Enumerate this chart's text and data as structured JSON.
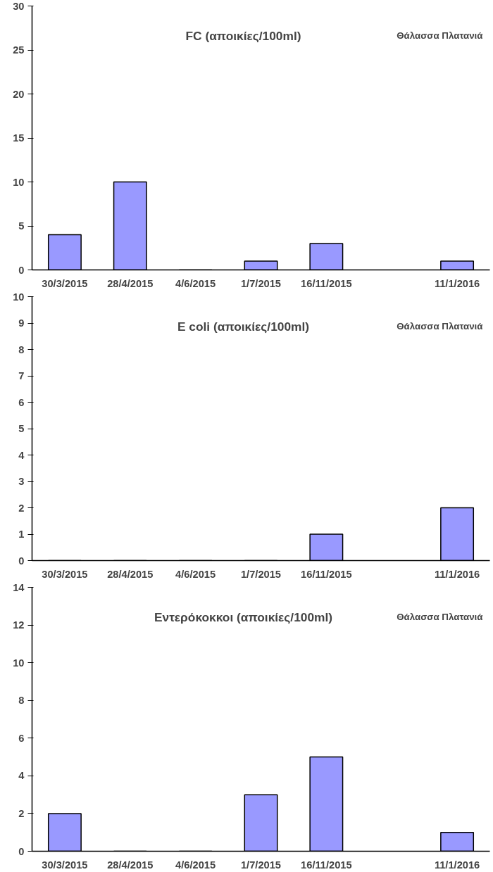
{
  "chart_data": [
    {
      "type": "bar",
      "title": "FC (αποικίες/100ml)",
      "annotations": [
        "Θάλασσα Πλατανιά"
      ],
      "categories": [
        "30/3/2015",
        "28/4/2015",
        "4/6/2015",
        "1/7/2015",
        "16/11/2015",
        null,
        "11/1/2016"
      ],
      "values": [
        4,
        10,
        0,
        1,
        3,
        null,
        1
      ],
      "color": "#9999ff",
      "ylim": [
        0,
        30
      ],
      "yticks": [
        0,
        5,
        10,
        15,
        20,
        25,
        30
      ],
      "grid": false
    },
    {
      "type": "bar",
      "title": "E coli (αποικίες/100ml)",
      "annotations": [
        "Θάλασσα Πλατανιά"
      ],
      "categories": [
        "30/3/2015",
        "28/4/2015",
        "4/6/2015",
        "1/7/2015",
        "16/11/2015",
        null,
        "11/1/2016"
      ],
      "values": [
        0,
        0,
        0,
        0,
        1,
        null,
        2
      ],
      "color": "#9999ff",
      "ylim": [
        0,
        10
      ],
      "yticks": [
        0,
        1,
        2,
        3,
        4,
        5,
        6,
        7,
        8,
        9,
        10
      ],
      "grid": false
    },
    {
      "type": "bar",
      "title": "Εντερόκοκκοι (αποικίες/100ml)",
      "annotations": [
        "Θάλασσα Πλατανιά"
      ],
      "categories": [
        "30/3/2015",
        "28/4/2015",
        "4/6/2015",
        "1/7/2015",
        "16/11/2015",
        null,
        "11/1/2016"
      ],
      "values": [
        2,
        0,
        0,
        3,
        5,
        null,
        1
      ],
      "color": "#9999ff",
      "ylim": [
        0,
        14
      ],
      "yticks": [
        0,
        2,
        4,
        6,
        8,
        10,
        12,
        14
      ],
      "grid": false
    }
  ]
}
